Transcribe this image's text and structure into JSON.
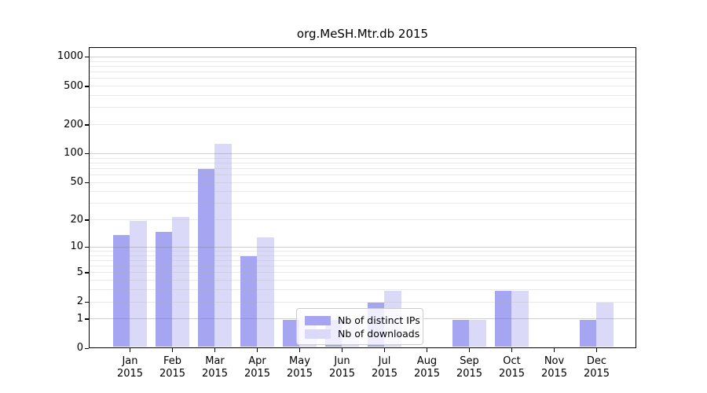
{
  "chart_data": {
    "type": "bar",
    "title": "org.MeSH.Mtr.db 2015",
    "categories": [
      "Jan",
      "Feb",
      "Mar",
      "Apr",
      "May",
      "Jun",
      "Jul",
      "Aug",
      "Sep",
      "Oct",
      "Nov",
      "Dec"
    ],
    "x_tick_second_line": "2015",
    "series": [
      {
        "name": "Nb of distinct IPs",
        "color": "#a5a5f2",
        "values": [
          14,
          15,
          70,
          8,
          1,
          1,
          2,
          0,
          1,
          3,
          0,
          1
        ]
      },
      {
        "name": "Nb of downloads",
        "color": "#dadaf8",
        "values": [
          20,
          22,
          130,
          13,
          1,
          1,
          3,
          0,
          1,
          3,
          0,
          2
        ]
      }
    ],
    "y_axis": {
      "scale": "log10(1+v)",
      "ticks": [
        1000,
        500,
        200,
        100,
        50,
        20,
        10,
        5,
        2,
        1,
        0
      ],
      "top_value": 1280
    },
    "grid": "on",
    "legend_position": "inside-bottom-center"
  },
  "colors": {
    "background": "#ffffff",
    "axis": "#000000",
    "major_grid": "#c8c8c8",
    "minor_grid": "#ececec"
  }
}
